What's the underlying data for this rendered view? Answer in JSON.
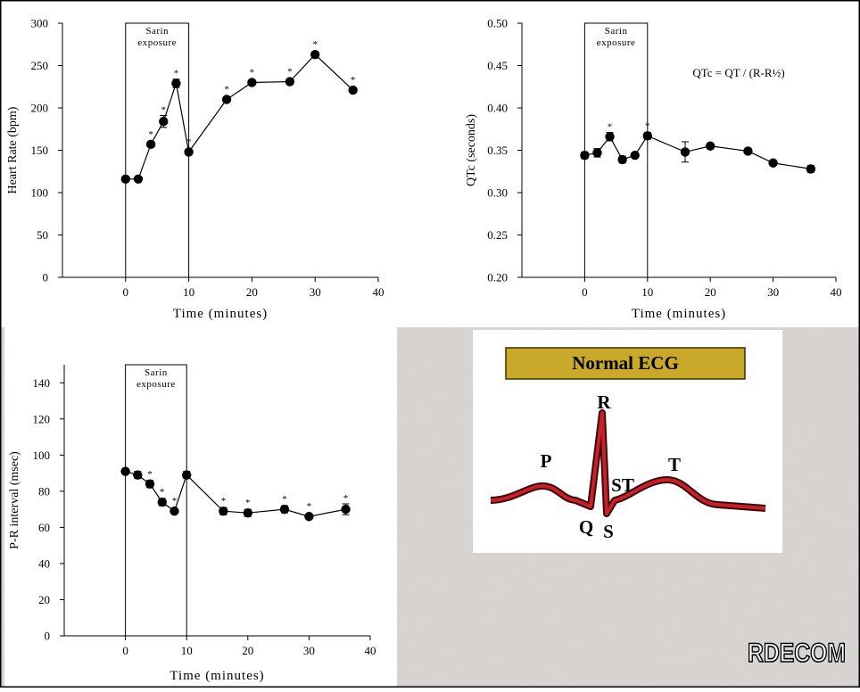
{
  "chart_data": [
    {
      "type": "line",
      "ylabel": "Heart Rate (bpm)",
      "xlabel": "Time (minutes)",
      "x": [
        0,
        2,
        4,
        6,
        8,
        10,
        16,
        20,
        26,
        30,
        36
      ],
      "values": [
        116,
        116,
        157,
        184,
        229,
        148,
        210,
        230,
        231,
        263,
        221
      ],
      "errors": [
        3,
        3,
        3,
        7,
        5,
        3,
        3,
        3,
        3,
        3,
        3
      ],
      "stars": [
        null,
        null,
        "*",
        "*",
        "*",
        "*",
        "*",
        "*",
        "*",
        "*",
        "*"
      ],
      "xlim": [
        -10,
        40
      ],
      "xticks": [
        0,
        10,
        20,
        30,
        40
      ],
      "ylim": [
        0,
        300
      ],
      "yticks": [
        0,
        50,
        100,
        150,
        200,
        250,
        300
      ],
      "annotation": {
        "lines": [
          "Sarin",
          "exposure"
        ],
        "span": [
          0,
          10
        ]
      },
      "color": "#000000",
      "grid": false
    },
    {
      "type": "line",
      "ylabel": "QTc (seconds)",
      "xlabel": "Time (minutes)",
      "x": [
        0,
        2,
        4,
        6,
        8,
        10,
        16,
        20,
        26,
        30,
        36
      ],
      "values": [
        0.344,
        0.347,
        0.366,
        0.339,
        0.344,
        0.367,
        0.348,
        0.355,
        0.349,
        0.335,
        0.328
      ],
      "errors": [
        0.004,
        0.005,
        0.005,
        0.004,
        0.003,
        0.004,
        0.012,
        0.003,
        0.002,
        0.002,
        0.004
      ],
      "stars": [
        null,
        null,
        "*",
        null,
        null,
        "*",
        null,
        null,
        null,
        null,
        null
      ],
      "xlim": [
        -10,
        40
      ],
      "xticks": [
        0,
        10,
        20,
        30,
        40
      ],
      "ylim": [
        0.2,
        0.5
      ],
      "yticks": [
        {
          "value": 0.2,
          "label": "0.20"
        },
        {
          "value": 0.25,
          "label": "0.25"
        },
        {
          "value": 0.3,
          "label": "0.30"
        },
        {
          "value": 0.35,
          "label": "0.35"
        },
        {
          "value": 0.4,
          "label": "0.40"
        },
        {
          "value": 0.45,
          "label": "0.45"
        },
        {
          "value": 0.5,
          "label": "0.50"
        }
      ],
      "annotation": {
        "lines": [
          "Sarin",
          "exposure"
        ],
        "span": [
          0,
          10
        ]
      },
      "note": "QTc = QT / (R-R½)",
      "color": "#000000",
      "grid": false
    },
    {
      "type": "line",
      "ylabel": "P-R interval (msec)",
      "xlabel": "Time (minutes)",
      "x": [
        0,
        2,
        4,
        6,
        8,
        10,
        16,
        20,
        26,
        30,
        36
      ],
      "values": [
        91,
        89,
        84,
        74,
        69,
        89,
        69,
        68,
        70,
        66,
        70
      ],
      "errors": [
        1,
        2,
        2,
        2,
        1,
        2,
        2,
        2,
        2,
        1,
        3
      ],
      "stars": [
        null,
        null,
        "*",
        "*",
        "*",
        null,
        "*",
        "*",
        "*",
        "*",
        "*"
      ],
      "xlim": [
        -10,
        40
      ],
      "xticks": [
        0,
        10,
        20,
        30,
        40
      ],
      "ylim": [
        0,
        150
      ],
      "yticks": [
        0,
        20,
        40,
        60,
        80,
        100,
        120,
        140
      ],
      "annotation": {
        "lines": [
          "Sarin",
          "exposure"
        ],
        "span": [
          0,
          10
        ]
      },
      "color": "#000000",
      "grid": false
    }
  ],
  "ecg": {
    "title": "Normal ECG",
    "labels": [
      "P",
      "R",
      "Q",
      "S",
      "ST",
      "T"
    ]
  },
  "logo": "RDECOM"
}
